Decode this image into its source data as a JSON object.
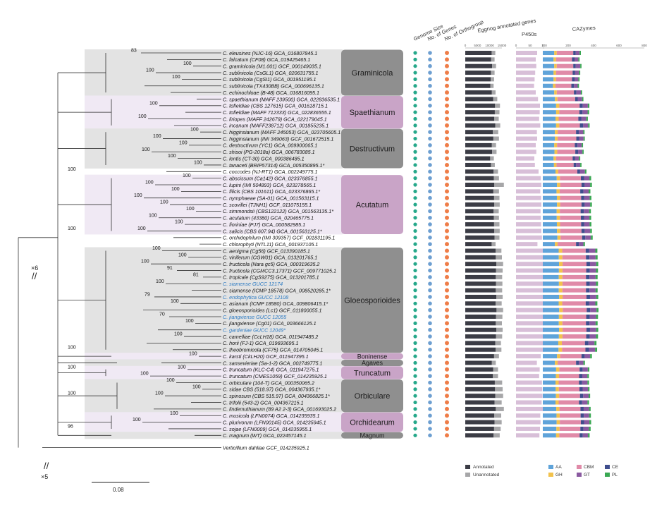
{
  "columns": {
    "genome_size": "Genome Size",
    "no_of_genes": "No. of Genes",
    "no_of_orthogroup": "No. of Orthogroup",
    "eggnog": "Eggnog annotated genes",
    "p450s": "P450s",
    "cazymes": "CAZymes"
  },
  "axis_ticks": {
    "eggnog": [
      "0",
      "5000",
      "10000",
      "15000"
    ],
    "p450": [
      "0",
      "50",
      "100"
    ],
    "caz": [
      "0",
      "200",
      "400",
      "600",
      "800"
    ]
  },
  "colors": {
    "annotated": "#3b3c45",
    "unannotated": "#a6a6a8",
    "p450": "#d8bfd8",
    "genome_dot": "#26a88a",
    "genes_dot": "#6d9fd1",
    "ortho_dot": "#ef7d48",
    "clade_dark": "#8f8f8f",
    "clade_light": "#c9a4c7",
    "band_grey": "#e3e3e3",
    "band_lav": "#f0e9f4",
    "highlight_text": "#2c7ac2",
    "caz": {
      "AA": "#5fa3d9",
      "GH": "#f2c24d",
      "CBM": "#e08aa8",
      "CE": "#3f4e8d",
      "GT": "#8a5aa0",
      "PL": "#39a852"
    }
  },
  "taxa": [
    {
      "name": "C. eleusines (NJC-16) GCA_016807845.1",
      "sup": "83",
      "eg": 10800,
      "un": 1500,
      "p450": 75,
      "caz": [
        90,
        20,
        130,
        20,
        30,
        10
      ]
    },
    {
      "name": "C. falcatum (CF08) GCA_019425465.1",
      "sup": "",
      "eg": 10600,
      "un": 1400,
      "p450": 70,
      "caz": [
        85,
        20,
        125,
        20,
        30,
        10
      ]
    },
    {
      "name": "C. graminicola (M1.001) GCF_000149035.1",
      "sup": "100",
      "eg": 11000,
      "un": 1600,
      "p450": 72,
      "caz": [
        90,
        20,
        130,
        20,
        35,
        10
      ]
    },
    {
      "name": "C. sublinicola (CsGL1) GCA_020631755.1",
      "sup": "100",
      "eg": 10500,
      "un": 1500,
      "p450": 68,
      "caz": [
        85,
        20,
        130,
        20,
        30,
        10
      ]
    },
    {
      "name": "C. sublinicola (CgSI1) GCA_001951195.1",
      "sup": "100",
      "eg": 10400,
      "un": 1400,
      "p450": 66,
      "caz": [
        85,
        20,
        125,
        20,
        30,
        10
      ]
    },
    {
      "name": "C. sublinicola (TX430BB) GCA_000696135.1",
      "sup": "",
      "eg": 10300,
      "un": 1300,
      "p450": 64,
      "caz": [
        80,
        20,
        125,
        20,
        30,
        10
      ]
    },
    {
      "name": "C. echinochloae (B-48) GCA_016816095.1",
      "sup": "",
      "eg": 10900,
      "un": 1500,
      "p450": 70,
      "caz": [
        90,
        20,
        135,
        20,
        35,
        10
      ]
    },
    {
      "name": "C. spaethianum (MAFF 239500) GCA_022836535.1",
      "sup": "",
      "eg": 11400,
      "un": 1700,
      "p450": 78,
      "caz": [
        95,
        20,
        140,
        20,
        35,
        10
      ]
    },
    {
      "name": "C. tofieldiae (CBS 127615) GCA_001618715.1",
      "sup": "100",
      "eg": 12200,
      "un": 2000,
      "p450": 85,
      "caz": [
        105,
        25,
        160,
        25,
        40,
        12
      ]
    },
    {
      "name": "C. tofieldiae (MAFF 712333) GCA_022836555.1",
      "sup": "",
      "eg": 12100,
      "un": 1900,
      "p450": 84,
      "caz": [
        105,
        25,
        158,
        25,
        40,
        12
      ]
    },
    {
      "name": "C. liriopes (MAFF 242679) GCA_022179045.1",
      "sup": "100",
      "eg": 11900,
      "un": 1800,
      "p450": 82,
      "caz": [
        100,
        25,
        155,
        25,
        38,
        12
      ]
    },
    {
      "name": "C. incanum (MAFF238712) GCA_001855235.1",
      "sup": "",
      "eg": 12300,
      "un": 2000,
      "p450": 86,
      "caz": [
        105,
        25,
        162,
        25,
        40,
        12
      ]
    },
    {
      "name": "C. higginsianum (MAFF 245053) GCA_023705605.1",
      "sup": "100",
      "eg": 11300,
      "un": 2200,
      "p450": 74,
      "caz": [
        95,
        22,
        145,
        22,
        35,
        10
      ]
    },
    {
      "name": "C. higginsianum (IMI 349063) GCF_001672515.1",
      "sup": "100",
      "eg": 11500,
      "un": 2300,
      "p450": 75,
      "caz": [
        95,
        22,
        147,
        22,
        35,
        10
      ]
    },
    {
      "name": "C. destructivum (YC1) GCA_009900065.1",
      "sup": "100",
      "eg": 10900,
      "un": 1700,
      "p450": 70,
      "caz": [
        90,
        22,
        140,
        22,
        33,
        10
      ]
    },
    {
      "name": "C. shisoi (PG-2018a) GCA_006783085.1",
      "sup": "100",
      "eg": 11000,
      "un": 1800,
      "p450": 72,
      "caz": [
        92,
        22,
        142,
        22,
        34,
        10
      ]
    },
    {
      "name": "C. lentis (CT-30) GCA_000386485.1",
      "sup": "100",
      "eg": 10200,
      "un": 1500,
      "p450": 65,
      "caz": [
        85,
        20,
        130,
        20,
        30,
        10
      ]
    },
    {
      "name": "C. tanaceti (BRIP57314) GCA_005350895.1*",
      "sup": "100",
      "eg": 10500,
      "un": 1600,
      "p450": 67,
      "caz": [
        88,
        20,
        135,
        20,
        32,
        10
      ]
    },
    {
      "name": "C. coccodes (NJ-RT1) GCA_002249775.1",
      "sup": "",
      "eg": 11600,
      "un": 1800,
      "p450": 80,
      "caz": [
        100,
        22,
        150,
        22,
        38,
        12
      ]
    },
    {
      "name": "C. abscissum (Ca142) GCA_023376855.1",
      "sup": "100",
      "eg": 11700,
      "un": 2100,
      "p450": 88,
      "caz": [
        110,
        25,
        165,
        25,
        42,
        14
      ]
    },
    {
      "name": "C. lupini (IMI 504893) GCA_023278565.1",
      "sup": "100",
      "eg": 11900,
      "un": 3900,
      "p450": 90,
      "caz": [
        112,
        25,
        168,
        25,
        43,
        14
      ]
    },
    {
      "name": "C. filicis (CBS 101611) GCA_023376865.1*",
      "sup": "100",
      "eg": 11500,
      "un": 2300,
      "p450": 86,
      "caz": [
        108,
        25,
        162,
        25,
        41,
        14
      ]
    },
    {
      "name": "C. nymphaeae (SA-01) GCA_001563115.1",
      "sup": "100",
      "eg": 11800,
      "un": 2200,
      "p450": 89,
      "caz": [
        111,
        25,
        166,
        25,
        42,
        14
      ]
    },
    {
      "name": "C. scovillei (TJNH1) GCF_011075155.1",
      "sup": "100",
      "eg": 11900,
      "un": 2200,
      "p450": 90,
      "caz": [
        112,
        25,
        168,
        25,
        43,
        14
      ]
    },
    {
      "name": "C. simmondsii (CBS122122) GCA_001563135.1*",
      "sup": "100",
      "eg": 11600,
      "un": 2100,
      "p450": 87,
      "caz": [
        109,
        25,
        164,
        25,
        42,
        14
      ]
    },
    {
      "name": "C. acutatum (43380) GCA_020465775.1",
      "sup": "100",
      "eg": 11700,
      "un": 2100,
      "p450": 88,
      "caz": [
        110,
        25,
        165,
        25,
        42,
        14
      ]
    },
    {
      "name": "C. fioriniae (PJ7) GCA_000582985.1",
      "sup": "100",
      "eg": 11800,
      "un": 2200,
      "p450": 89,
      "caz": [
        111,
        25,
        166,
        25,
        42,
        14
      ]
    },
    {
      "name": "C. salicis (CBS 607.94) GCA_001563125.1*",
      "sup": "100",
      "eg": 11900,
      "un": 2200,
      "p450": 90,
      "caz": [
        112,
        25,
        168,
        25,
        43,
        14
      ]
    },
    {
      "name": "C. orchidophilum (IMI 309357) GCF_001831195.1",
      "sup": "",
      "eg": 12000,
      "un": 2000,
      "p450": 92,
      "caz": [
        115,
        25,
        170,
        25,
        44,
        14
      ]
    },
    {
      "name": "C. chlorophyti (NTL11) GCA_001937105.1",
      "sup": "",
      "eg": 10800,
      "un": 1600,
      "p450": 76,
      "caz": [
        95,
        22,
        145,
        22,
        36,
        12
      ]
    },
    {
      "name": "C. aenigma (Cg56) GCF_013390185.1",
      "sup": "100",
      "eg": 12400,
      "un": 2400,
      "p450": 98,
      "caz": [
        125,
        28,
        185,
        28,
        48,
        16
      ]
    },
    {
      "name": "C. viniferum (CGW01) GCA_013201765.1",
      "sup": "100",
      "eg": 12500,
      "un": 2500,
      "p450": 99,
      "caz": [
        126,
        28,
        186,
        28,
        48,
        16
      ]
    },
    {
      "name": "C. fructicola (Nara gc5) GCA_000319635.2",
      "sup": "100",
      "eg": 12700,
      "un": 2800,
      "p450": 100,
      "caz": [
        128,
        28,
        188,
        28,
        49,
        16
      ]
    },
    {
      "name": "C. fructicola (CGMCC3.17371) GCF_009771025.1",
      "sup": "91",
      "eg": 12600,
      "un": 2700,
      "p450": 100,
      "caz": [
        127,
        28,
        187,
        28,
        49,
        16
      ]
    },
    {
      "name": "C. tropicale (CgS9275) GCA_013201785.1",
      "sup": "81",
      "eg": 12500,
      "un": 2600,
      "p450": 99,
      "caz": [
        126,
        28,
        186,
        28,
        48,
        16
      ]
    },
    {
      "name": "C. siamense GUCC 12174",
      "sup": "100",
      "hl": true,
      "eg": 12600,
      "un": 2600,
      "p450": 99,
      "caz": [
        127,
        28,
        187,
        28,
        49,
        16
      ]
    },
    {
      "name": "C. siamense (ICMP 18578) GCA_008520285.1*",
      "sup": "",
      "eg": 12500,
      "un": 2600,
      "p450": 98,
      "caz": [
        126,
        28,
        186,
        28,
        48,
        16
      ]
    },
    {
      "name": "C. endophytica GUCC 12108",
      "sup": "79",
      "hl": true,
      "eg": 12700,
      "un": 2600,
      "p450": 100,
      "caz": [
        128,
        28,
        188,
        28,
        49,
        16
      ]
    },
    {
      "name": "C. asianum (ICMP 18580) GCA_009806415.1*",
      "sup": "100",
      "eg": 12400,
      "un": 2500,
      "p450": 97,
      "caz": [
        125,
        28,
        185,
        28,
        48,
        16
      ]
    },
    {
      "name": "C. gloeosporioides (Lc1) GCF_011800055.1",
      "sup": "",
      "eg": 12800,
      "un": 2700,
      "p450": 101,
      "caz": [
        129,
        28,
        189,
        28,
        49,
        16
      ]
    },
    {
      "name": "C. jiangxiense GUCC 12055",
      "sup": "70",
      "hl": true,
      "eg": 12600,
      "un": 2600,
      "p450": 99,
      "caz": [
        127,
        28,
        187,
        28,
        49,
        16
      ]
    },
    {
      "name": "C. jiangxiense (Cg01) GCA_003666125.1",
      "sup": "100",
      "eg": 12500,
      "un": 2500,
      "p450": 98,
      "caz": [
        126,
        28,
        186,
        28,
        48,
        16
      ]
    },
    {
      "name": "C. gardeniae GUCC 12049*",
      "sup": "",
      "hl": true,
      "eg": 12700,
      "un": 2600,
      "p450": 100,
      "caz": [
        128,
        28,
        188,
        28,
        49,
        16
      ]
    },
    {
      "name": "C. camelliae (CcLH18) GCA_011947485.2",
      "sup": "100",
      "eg": 12600,
      "un": 2500,
      "p450": 99,
      "caz": [
        127,
        28,
        187,
        28,
        49,
        16
      ]
    },
    {
      "name": "C. horii (FJ-1) GCA_019693695.1",
      "sup": "",
      "eg": 12300,
      "un": 2300,
      "p450": 95,
      "caz": [
        122,
        28,
        182,
        28,
        47,
        16
      ]
    },
    {
      "name": "C. theobromicola (CF75) GCA_014705045.1",
      "sup": "",
      "eg": 12400,
      "un": 2400,
      "p450": 97,
      "caz": [
        124,
        28,
        184,
        28,
        48,
        16
      ]
    },
    {
      "name": "C. karsti (CkLH20) GCF_011947395.1",
      "sup": "100",
      "eg": 11800,
      "un": 2000,
      "p450": 88,
      "caz": [
        112,
        25,
        168,
        25,
        43,
        14
      ]
    },
    {
      "name": "C. sansevieriae (Sa-1-2) GCA_002749775.1",
      "sup": "",
      "eg": 10900,
      "un": 1600,
      "p450": 74,
      "caz": [
        95,
        22,
        145,
        22,
        36,
        12
      ]
    },
    {
      "name": "C. truncatum (KLC-C4) GCA_011947275.1",
      "sup": "100",
      "eg": 11400,
      "un": 2000,
      "p450": 84,
      "caz": [
        105,
        25,
        160,
        25,
        40,
        12
      ]
    },
    {
      "name": "C. truncatum (CMES1059) GCF_014235925.1",
      "sup": "100",
      "eg": 11300,
      "un": 2100,
      "p450": 82,
      "caz": [
        103,
        25,
        158,
        25,
        40,
        12
      ]
    },
    {
      "name": "C. orbiculare (104-T) GCA_000350065.2",
      "sup": "100",
      "eg": 12100,
      "un": 3000,
      "p450": 92,
      "caz": [
        100,
        25,
        160,
        25,
        42,
        12
      ]
    },
    {
      "name": "C. sidae CBS (518.97) GCA_004367935.1*",
      "sup": "100",
      "eg": 12200,
      "un": 3100,
      "p450": 93,
      "caz": [
        102,
        25,
        162,
        25,
        42,
        12
      ]
    },
    {
      "name": "C. spinosum (CBS 515.97) GCA_004366825.1*",
      "sup": "100",
      "eg": 12300,
      "un": 3200,
      "p450": 94,
      "caz": [
        104,
        25,
        164,
        25,
        43,
        12
      ]
    },
    {
      "name": "C. trifolii (543-2) GCA_004367215.1",
      "sup": "",
      "eg": 12000,
      "un": 2900,
      "p450": 91,
      "caz": [
        100,
        25,
        160,
        25,
        42,
        12
      ]
    },
    {
      "name": "C. lindemuthianum (89 A2 2-3) GCA_001693025.2",
      "sup": "",
      "eg": 12500,
      "un": 3300,
      "p450": 95,
      "caz": [
        106,
        25,
        166,
        25,
        43,
        12
      ]
    },
    {
      "name": "C. musicola (LFN0074) GCA_014235935.1",
      "sup": "100",
      "eg": 11900,
      "un": 2800,
      "p450": 86,
      "caz": [
        108,
        25,
        165,
        25,
        42,
        14
      ]
    },
    {
      "name": "C. plurivorum (LFN00145) GCA_014235945.1",
      "sup": "100",
      "eg": 12000,
      "un": 2900,
      "p450": 87,
      "caz": [
        109,
        25,
        166,
        25,
        42,
        14
      ]
    },
    {
      "name": "C. sojae (LFN0009) GCA_014235955.1",
      "sup": "",
      "eg": 11800,
      "un": 2700,
      "p450": 85,
      "caz": [
        107,
        25,
        164,
        25,
        42,
        14
      ]
    },
    {
      "name": "C. magnum (WT) GCA_022457145.1",
      "sup": "",
      "eg": 11600,
      "un": 2500,
      "p450": 83,
      "caz": [
        105,
        25,
        160,
        25,
        41,
        13
      ]
    },
    {
      "name": "Verticillium dahliae GCF_014235925.1",
      "sup": "",
      "eg": 0,
      "un": 0,
      "p450": 0,
      "caz": [
        0,
        0,
        0,
        0,
        0,
        0
      ]
    }
  ],
  "clades": [
    {
      "label": "Graminicola",
      "first": 0,
      "last": 6,
      "style": "dark"
    },
    {
      "label": "Spaethianum",
      "first": 7,
      "last": 11,
      "style": "light"
    },
    {
      "label": "Destructivum",
      "first": 12,
      "last": 17,
      "style": "dark"
    },
    {
      "label": "Acutatum",
      "first": 19,
      "last": 27,
      "style": "light"
    },
    {
      "label": "Gloeosporioides",
      "first": 30,
      "last": 45,
      "style": "dark"
    },
    {
      "label": "Boninense",
      "first": 46,
      "last": 46,
      "style": "light"
    },
    {
      "label": "Agaves",
      "first": 47,
      "last": 47,
      "style": "dark"
    },
    {
      "label": "Truncatum",
      "first": 48,
      "last": 49,
      "style": "light"
    },
    {
      "label": "Orbiculare",
      "first": 50,
      "last": 54,
      "style": "dark"
    },
    {
      "label": "Orchidearum",
      "first": 55,
      "last": 57,
      "style": "light"
    },
    {
      "label": "Magnum",
      "first": 58,
      "last": 58,
      "style": "dark"
    }
  ],
  "tree": {
    "backbone_support": [
      {
        "label": "100",
        "row": 18
      },
      {
        "label": "100",
        "row": 27
      },
      {
        "label": "100",
        "row": 45
      },
      {
        "label": "100",
        "row": 48
      },
      {
        "label": "100",
        "row": 52
      },
      {
        "label": "96",
        "row": 57
      }
    ],
    "outgroup_break_top": "×6",
    "outgroup_break_bottom": "×5",
    "scale_bar": "0.08"
  },
  "legend": {
    "eggnog": [
      {
        "key": "annotated",
        "label": "Annotated"
      },
      {
        "key": "unannotated",
        "label": "Unannotated"
      }
    ],
    "caz": [
      {
        "key": "AA",
        "label": "AA"
      },
      {
        "key": "CBM",
        "label": "CBM"
      },
      {
        "key": "CE",
        "label": "CE"
      },
      {
        "key": "GH",
        "label": "GH"
      },
      {
        "key": "GT",
        "label": "GT"
      },
      {
        "key": "PL",
        "label": "PL"
      }
    ]
  }
}
